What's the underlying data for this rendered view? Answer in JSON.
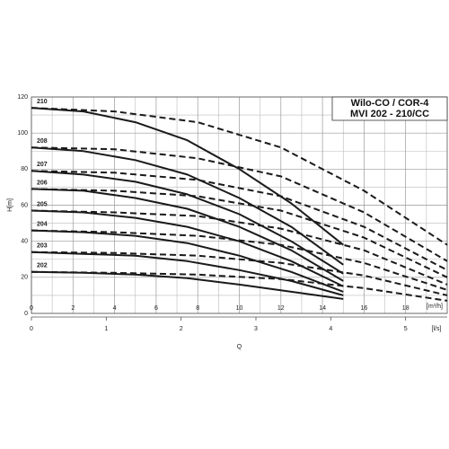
{
  "chart_data": {
    "type": "line",
    "title": [
      "Wilo-CO / COR-4",
      "MVI 202 - 210/CC"
    ],
    "y_label": "H[m]",
    "x_unit_label": "[m³/h]",
    "x2_unit_label": "[l/s]",
    "x2_label": "Q",
    "xlim": [
      0,
      20
    ],
    "xticks": [
      0,
      2,
      4,
      6,
      8,
      10,
      12,
      14,
      16,
      18
    ],
    "xminor": [
      1,
      3,
      5,
      7,
      9,
      11,
      13,
      15,
      17,
      19
    ],
    "ylim": [
      0,
      120
    ],
    "yticks": [
      0,
      20,
      40,
      60,
      80,
      100,
      120
    ],
    "yminor": [
      10,
      30,
      50,
      70,
      90,
      110
    ],
    "x2lim": [
      0,
      5.556
    ],
    "x2ticks": [
      0,
      1,
      2,
      3,
      4,
      5
    ],
    "grid": true,
    "color": "#1a1a1a",
    "series": [
      {
        "name": "210",
        "style": "solid",
        "x": [
          0,
          2.5,
          5,
          7.5,
          10,
          12.5,
          15
        ],
        "values": [
          114,
          112,
          106,
          96,
          80,
          61,
          38
        ]
      },
      {
        "name": "208",
        "style": "solid",
        "x": [
          0,
          2.5,
          5,
          7.5,
          10,
          12.5,
          15
        ],
        "values": [
          92,
          90,
          85,
          77,
          64,
          48,
          27
        ]
      },
      {
        "name": "207",
        "style": "solid",
        "x": [
          0,
          2.5,
          5,
          7.5,
          10,
          12.5,
          15
        ],
        "values": [
          79,
          77,
          73,
          66,
          55,
          40,
          22
        ]
      },
      {
        "name": "206",
        "style": "solid",
        "x": [
          0,
          2.5,
          5,
          7.5,
          10,
          12.5,
          15
        ],
        "values": [
          69,
          68,
          64,
          58,
          48,
          35,
          18
        ]
      },
      {
        "name": "205",
        "style": "solid",
        "x": [
          0,
          2.5,
          5,
          7.5,
          10,
          12.5,
          15
        ],
        "values": [
          57,
          56,
          53,
          48,
          40,
          29,
          15
        ]
      },
      {
        "name": "204",
        "style": "solid",
        "x": [
          0,
          2.5,
          5,
          7.5,
          10,
          12.5,
          15
        ],
        "values": [
          46,
          45,
          43,
          39,
          32,
          23,
          12
        ]
      },
      {
        "name": "203",
        "style": "solid",
        "x": [
          0,
          2.5,
          5,
          7.5,
          10,
          12.5,
          15
        ],
        "values": [
          34,
          33,
          32,
          29,
          24,
          18,
          10
        ]
      },
      {
        "name": "202",
        "style": "solid",
        "x": [
          0,
          2.5,
          5,
          7.5,
          10,
          12.5,
          15
        ],
        "values": [
          23,
          22.5,
          21.5,
          19.5,
          16,
          12,
          8
        ]
      },
      {
        "style": "dashed",
        "x": [
          0,
          4,
          8,
          12,
          16,
          20
        ],
        "values": [
          114,
          112,
          106,
          92,
          68,
          38
        ]
      },
      {
        "style": "dashed",
        "x": [
          0,
          4,
          8,
          12,
          16,
          20
        ],
        "values": [
          92,
          91,
          86,
          76,
          56,
          29
        ]
      },
      {
        "style": "dashed",
        "x": [
          0,
          4,
          8,
          12,
          16,
          20
        ],
        "values": [
          79,
          78,
          74,
          65,
          48,
          24
        ]
      },
      {
        "style": "dashed",
        "x": [
          0,
          4,
          8,
          12,
          16,
          20
        ],
        "values": [
          69,
          68,
          65,
          57,
          42,
          20
        ]
      },
      {
        "style": "dashed",
        "x": [
          0,
          4,
          8,
          12,
          16,
          20
        ],
        "values": [
          57,
          56,
          54,
          47,
          35,
          16
        ]
      },
      {
        "style": "dashed",
        "x": [
          0,
          4,
          8,
          12,
          16,
          20
        ],
        "values": [
          46,
          45,
          43,
          38,
          28,
          13
        ]
      },
      {
        "style": "dashed",
        "x": [
          0,
          4,
          8,
          12,
          16,
          20
        ],
        "values": [
          34,
          33.5,
          32,
          28,
          21,
          10
        ]
      },
      {
        "style": "dashed",
        "x": [
          0,
          4,
          8,
          12,
          16,
          20
        ],
        "values": [
          23,
          22.5,
          21.5,
          19,
          14,
          7
        ]
      }
    ]
  }
}
